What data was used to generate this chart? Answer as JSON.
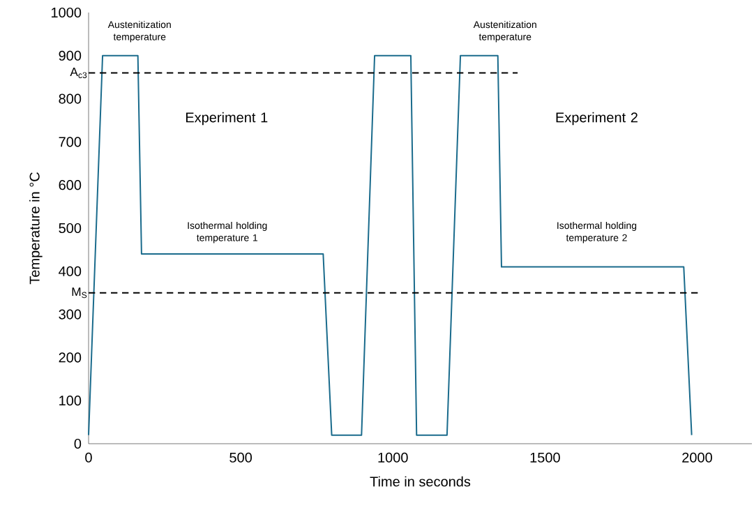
{
  "chart_data": {
    "type": "line",
    "xlabel": "Time in seconds",
    "ylabel": "Temperature in °C",
    "xlim": [
      0,
      2180
    ],
    "ylim": [
      0,
      1000
    ],
    "xticks": [
      0,
      500,
      1000,
      1500,
      2000
    ],
    "yticks": [
      0,
      100,
      200,
      300,
      400,
      500,
      600,
      700,
      800,
      900,
      1000
    ],
    "grid": false,
    "marker": "none",
    "series": [
      {
        "color": "#1a6b8c",
        "line_style": "solid",
        "x": [
          0,
          46,
          162,
          174,
          771,
          799,
          897,
          940,
          1059,
          1078,
          1178,
          1222,
          1345,
          1357,
          1956,
          1982
        ],
        "values": [
          20,
          900,
          900,
          440,
          440,
          20,
          20,
          900,
          900,
          20,
          20,
          900,
          900,
          410,
          410,
          20
        ]
      },
      {
        "color": "#000000",
        "line_style": "dashed",
        "x": [
          0,
          1410
        ],
        "values": [
          860,
          860
        ]
      },
      {
        "color": "#000000",
        "line_style": "dashed",
        "x": [
          0,
          2010
        ],
        "values": [
          350,
          350
        ]
      }
    ],
    "annotations": [
      "Austenitization temperature",
      "Austenitization temperature",
      "Experiment 1",
      "Experiment 2",
      "Isothermal holding temperature 1",
      "Isothermal holding temperature 2",
      {
        "text": "A$_{c3}$",
        "x": 0,
        "y": 860
      },
      {
        "text": "M$_{S}$",
        "x": 0,
        "y": 350
      }
    ]
  }
}
